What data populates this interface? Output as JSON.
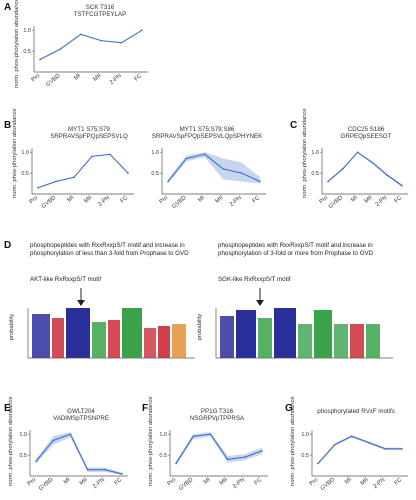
{
  "colors": {
    "line": "#3f6fc7",
    "band": "#b9cbea",
    "axis": "#555555",
    "text": "#333333"
  },
  "xcats": [
    "Pro",
    "GVBD",
    "MI",
    "MII",
    "2-PN",
    "FC"
  ],
  "panels": {
    "A": {
      "label": "A",
      "title": "SCK T316",
      "subtitle": "TSTFCGTPEYLAP",
      "ylabel": "norm. phos-phorylation abundance"
    },
    "B1": {
      "label": "B",
      "title": "MYT1 S75;S79",
      "subtitle": "SRPRAVSpFPQpSEPSVLQ",
      "ylabel": "norm. phos-phorylation abundance"
    },
    "B2": {
      "title": "MYT1 S75;S79;S86",
      "subtitle": "SRPRAVSpFPQpSEPSVLQpSPHYNEK"
    },
    "C": {
      "label": "C",
      "title": "CDC25 S186",
      "subtitle": "GRPEQpSEESGT",
      "ylabel": "norm. phos-phorylation abundance"
    },
    "E": {
      "label": "E",
      "title": "GWLT204",
      "subtitle": "VADIMSpTPSNPRE",
      "ylabel": "norm. phos-phorylation abundance"
    },
    "F": {
      "label": "F",
      "title": "PP1G T316",
      "subtitle": "NSGRPVpTPPRSA",
      "ylabel": "norm. phos-phorylation abundance"
    },
    "G": {
      "label": "G",
      "title": "phosphorylated RVxF motifs",
      "ylabel": "norm. phos-phorylation abundance"
    }
  },
  "D": {
    "label": "D",
    "left_text": "phosphopeptides with RxxRxxpS/T motif and increase in phosphorylation of less than 3-fold from Prophase to GVD",
    "left_motif": "AKT-like RxRxxpS/T motif",
    "right_text": "phosphopeptides with RxxRxxpS/T motif and increase in phosphorylation of 3-fold or more from Prophase to GVD",
    "right_motif": "SGK-like RxRxxpS/T motif",
    "ylabel": "probability"
  },
  "chart_data": [
    {
      "panel": "A",
      "type": "line",
      "categories": [
        "Pro",
        "GVBD",
        "MI",
        "MII",
        "2-PN",
        "FC"
      ],
      "values": [
        0.3,
        0.55,
        0.9,
        0.75,
        0.7,
        1.0
      ],
      "yticks": [
        "0.5",
        "1.0"
      ],
      "ylim": [
        0,
        1.1
      ],
      "band": false
    },
    {
      "panel": "B1",
      "type": "line",
      "categories": [
        "Pro",
        "GVBD",
        "MI",
        "MII",
        "2-PN",
        "FC"
      ],
      "values": [
        0.15,
        0.3,
        0.4,
        0.9,
        0.95,
        0.5
      ],
      "yticks": [
        "0.5",
        "1.0"
      ],
      "ylim": [
        0,
        1.1
      ],
      "band": false
    },
    {
      "panel": "B2",
      "type": "area",
      "categories": [
        "Pro",
        "GVBD",
        "MI",
        "MII",
        "2-PN",
        "FC"
      ],
      "values": [
        0.3,
        0.85,
        0.95,
        0.6,
        0.5,
        0.3
      ],
      "lower": [
        0.25,
        0.78,
        0.88,
        0.35,
        0.3,
        0.25
      ],
      "upper": [
        0.35,
        0.92,
        1.0,
        0.85,
        0.75,
        0.4
      ],
      "yticks": [
        "0.5",
        "1.0"
      ],
      "ylim": [
        0,
        1.1
      ],
      "band": true
    },
    {
      "panel": "C",
      "type": "line",
      "categories": [
        "Pro",
        "GVBD",
        "MI",
        "MII",
        "2-PN",
        "FC"
      ],
      "values": [
        0.3,
        0.6,
        1.0,
        0.75,
        0.45,
        0.2
      ],
      "lower": [
        0.28,
        0.57,
        0.97,
        0.72,
        0.42,
        0.17
      ],
      "upper": [
        0.32,
        0.63,
        1.0,
        0.78,
        0.48,
        0.23
      ],
      "yticks": [
        "0.5",
        "1.0"
      ],
      "ylim": [
        0,
        1.1
      ],
      "band": true
    },
    {
      "panel": "E",
      "type": "area",
      "categories": [
        "Pro",
        "GVBD",
        "MI",
        "MII",
        "2-PN",
        "FC"
      ],
      "values": [
        0.35,
        0.85,
        1.0,
        0.15,
        0.15,
        0.05
      ],
      "lower": [
        0.3,
        0.75,
        0.92,
        0.1,
        0.1,
        0.02
      ],
      "upper": [
        0.4,
        0.95,
        1.05,
        0.2,
        0.2,
        0.08
      ],
      "yticks": [
        "0.5",
        "1.0"
      ],
      "ylim": [
        0,
        1.1
      ],
      "band": true
    },
    {
      "panel": "F",
      "type": "area",
      "categories": [
        "Pro",
        "GVBD",
        "MI",
        "MII",
        "2-PN",
        "FC"
      ],
      "values": [
        0.3,
        0.95,
        1.0,
        0.4,
        0.45,
        0.6
      ],
      "lower": [
        0.25,
        0.88,
        0.95,
        0.32,
        0.38,
        0.52
      ],
      "upper": [
        0.35,
        1.0,
        1.05,
        0.48,
        0.52,
        0.68
      ],
      "yticks": [
        "0.5",
        "1.0"
      ],
      "ylim": [
        0,
        1.1
      ],
      "band": true
    },
    {
      "panel": "G",
      "type": "area",
      "categories": [
        "Pro",
        "GVBD",
        "MI",
        "MII",
        "2-PN",
        "FC"
      ],
      "values": [
        0.3,
        0.75,
        0.95,
        0.8,
        0.65,
        0.65
      ],
      "lower": [
        0.27,
        0.72,
        0.92,
        0.77,
        0.62,
        0.62
      ],
      "upper": [
        0.33,
        0.78,
        0.98,
        0.83,
        0.68,
        0.68
      ],
      "yticks": [
        "0.5",
        "1.0"
      ],
      "ylim": [
        0,
        1.1
      ],
      "band": true
    }
  ]
}
